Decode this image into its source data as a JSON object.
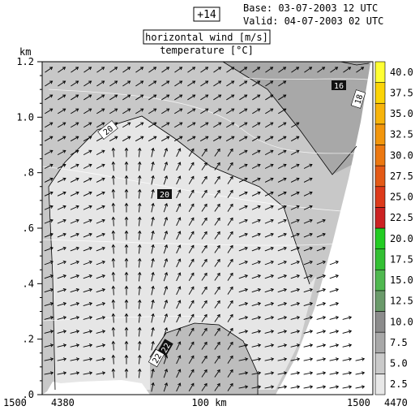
{
  "header": {
    "forecast_hour": "+14",
    "base_label": "Base: 03-07-2003  12 UTC",
    "valid_label": "Valid: 04-07-2003  02 UTC"
  },
  "chart_data": {
    "type": "heatmap",
    "title": "horizontal wind [m/s]",
    "subtitle": "temperature [°C]",
    "ylabel": "km",
    "ylim": [
      0,
      1.2
    ],
    "y_ticks": [
      {
        "value": 0.0,
        "label": ".0"
      },
      {
        "value": 0.2,
        "label": ".2"
      },
      {
        "value": 0.4,
        "label": ".4"
      },
      {
        "value": 0.6,
        "label": ".6"
      },
      {
        "value": 0.8,
        "label": ".8"
      },
      {
        "value": 1.0,
        "label": "1.0"
      },
      {
        "value": 1.2,
        "label": "1.2"
      }
    ],
    "x_labels": {
      "left_elevation": "1500",
      "left_distance": "4380",
      "center": "100 km",
      "right_elevation": "1500",
      "right_distance": "4470"
    },
    "contour_labels": [
      "20",
      "20",
      "18",
      "16",
      "22",
      "22"
    ],
    "colorbar": {
      "ticks": [
        2.5,
        5.0,
        7.5,
        10.0,
        12.5,
        15.0,
        17.5,
        20.0,
        22.5,
        25.0,
        27.5,
        30.0,
        32.5,
        35.0,
        37.5,
        40.0
      ],
      "tick_labels": [
        "2.5",
        "5.0",
        "7.5",
        "10.0",
        "12.5",
        "15.0",
        "17.5",
        "20.0",
        "22.5",
        "25.0",
        "27.5",
        "30.0",
        "32.5",
        "35.0",
        "37.5",
        "40.0"
      ],
      "colors": [
        "#e8e8e8",
        "#cacaca",
        "#a8a8a8",
        "#8c8c8c",
        "#6a9a6a",
        "#4fb84f",
        "#33c033",
        "#22cc22",
        "#cc2222",
        "#dd3a1a",
        "#e45a16",
        "#ec7810",
        "#f2960c",
        "#f7b40a",
        "#fbd406",
        "#ffff33"
      ]
    },
    "grid": false
  }
}
